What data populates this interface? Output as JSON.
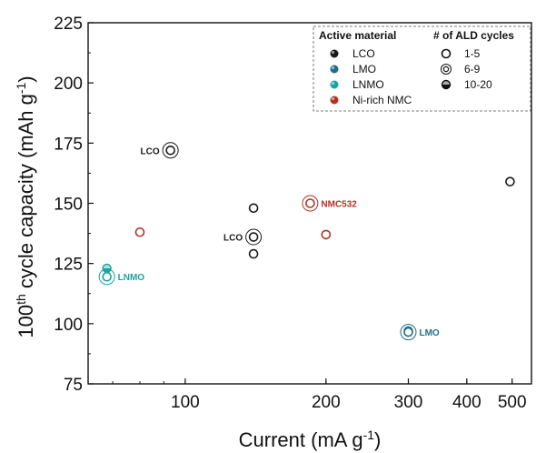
{
  "chart_data": {
    "type": "scatter",
    "x_scale": "log",
    "xlim": [
      62,
      550
    ],
    "ylim": [
      75,
      225
    ],
    "xticks": [
      100,
      200,
      300,
      400,
      500
    ],
    "yticks": [
      75,
      100,
      125,
      150,
      175,
      200,
      225
    ],
    "xlabel": "Current (mA g",
    "xlabel_sup": "-1",
    "xlabel_end": ")",
    "ylabel_pre": "100",
    "ylabel_sup": "th",
    "ylabel_post": " cycle capacity (mAh g",
    "ylabel_sup2": "-1",
    "ylabel_end": ")",
    "legend": {
      "position": "top-right",
      "material_title": "Active material",
      "cycles_title": "# of ALD cycles",
      "materials": [
        {
          "label": "LCO",
          "color": "#1a1a1a"
        },
        {
          "label": "LMO",
          "color": "#1f6e87"
        },
        {
          "label": "LNMO",
          "color": "#1aa3a3"
        },
        {
          "label": "Ni-rich NMC",
          "color": "#b03325"
        }
      ],
      "cycles": [
        {
          "label": "1-5",
          "style": "open"
        },
        {
          "label": "6-9",
          "style": "double"
        },
        {
          "label": "10-20",
          "style": "half"
        }
      ]
    },
    "points": [
      {
        "material": "LCO",
        "x": 93,
        "y": 172,
        "style": "double",
        "label": "LCO",
        "label_side": "left"
      },
      {
        "material": "LCO",
        "x": 140,
        "y": 148,
        "style": "open"
      },
      {
        "material": "LCO",
        "x": 140,
        "y": 136,
        "style": "double",
        "label": "LCO",
        "label_side": "left"
      },
      {
        "material": "LCO",
        "x": 140,
        "y": 129,
        "style": "open"
      },
      {
        "material": "LCO",
        "x": 495,
        "y": 159,
        "style": "open"
      },
      {
        "material": "Ni-rich NMC",
        "x": 80,
        "y": 138,
        "style": "open"
      },
      {
        "material": "Ni-rich NMC",
        "x": 185,
        "y": 150,
        "style": "double",
        "label": "NMC532",
        "label_side": "right"
      },
      {
        "material": "Ni-rich NMC",
        "x": 200,
        "y": 137,
        "style": "open"
      },
      {
        "material": "LNMO",
        "x": 68,
        "y": 123,
        "style": "half"
      },
      {
        "material": "LNMO",
        "x": 68,
        "y": 119.5,
        "style": "double",
        "label": "LNMO",
        "label_side": "right"
      },
      {
        "material": "LMO",
        "x": 300,
        "y": 97,
        "style": "half"
      },
      {
        "material": "LMO",
        "x": 300,
        "y": 96.5,
        "style": "double",
        "label": "LMO",
        "label_side": "right"
      }
    ]
  }
}
